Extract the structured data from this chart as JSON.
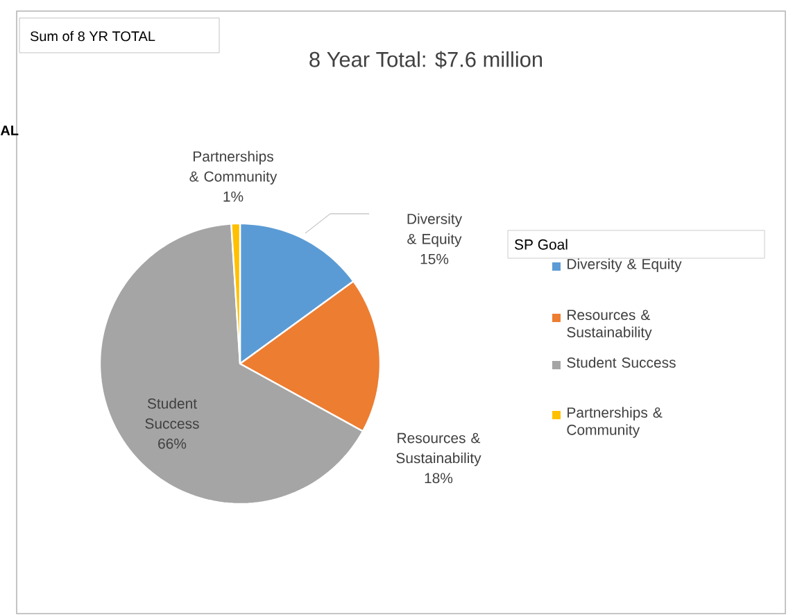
{
  "chart_data": {
    "type": "pie",
    "title": "8 Year Total: $7.6 million",
    "legend_title": "SP Goal",
    "categories": [
      "Diversity & Equity",
      "Resources & Sustainability",
      "Student Success",
      "Partnerships & Community"
    ],
    "values": [
      15,
      18,
      66,
      1
    ],
    "value_labels": [
      "15%",
      "18%",
      "66%",
      "1%"
    ],
    "colors": [
      "#5b9bd5",
      "#ed7d31",
      "#a5a5a5",
      "#ffc000"
    ],
    "legend": "right",
    "annotations": [
      "Sum of 8 YR TOTAL",
      "AL"
    ]
  }
}
